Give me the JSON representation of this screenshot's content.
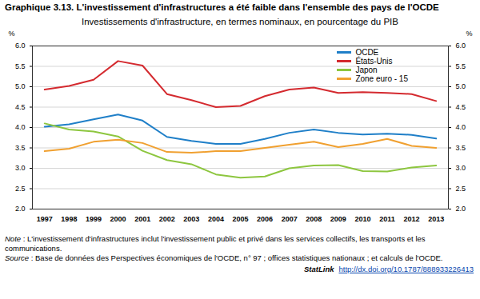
{
  "chart_data": {
    "type": "line",
    "title": "Graphique 3.13. L'investissement d'infrastructures a été faible dans l'ensemble des pays de l'OCDE",
    "subtitle": "Investissements d'infrastructure, en termes nominaux, en pourcentage du PIB",
    "ylabel": "%",
    "y2label": "%",
    "x": [
      1997,
      1998,
      1999,
      2000,
      2001,
      2002,
      2003,
      2004,
      2005,
      2006,
      2007,
      2008,
      2009,
      2010,
      2011,
      2012,
      2013
    ],
    "xlim": [
      1996.5,
      2013.5
    ],
    "xticks": [
      1997,
      1998,
      1999,
      2000,
      2001,
      2002,
      2003,
      2004,
      2005,
      2006,
      2007,
      2008,
      2009,
      2010,
      2011,
      2012,
      2013
    ],
    "ylim": [
      2.0,
      6.0
    ],
    "yticks": [
      {
        "value": 2,
        "label": "2.0"
      },
      {
        "value": 2.5,
        "label": "2.5"
      },
      {
        "value": 3,
        "label": "3.0"
      },
      {
        "value": 3.5,
        "label": "3.5"
      },
      {
        "value": 4,
        "label": "4.0"
      },
      {
        "value": 4.5,
        "label": "4.5"
      },
      {
        "value": 5,
        "label": "5.0"
      },
      {
        "value": 5.5,
        "label": "5.5"
      },
      {
        "value": 6,
        "label": "6.0"
      }
    ],
    "grid": true,
    "legend": "top-right",
    "series": [
      {
        "name": "OCDE",
        "color": "#1f7fc8",
        "values": [
          4.02,
          4.08,
          4.2,
          4.32,
          4.17,
          3.77,
          3.67,
          3.6,
          3.6,
          3.72,
          3.87,
          3.95,
          3.87,
          3.83,
          3.85,
          3.82,
          3.73
        ]
      },
      {
        "name": "États-Unis",
        "color": "#d42a2f",
        "values": [
          4.93,
          5.02,
          5.17,
          5.63,
          5.52,
          4.82,
          4.67,
          4.5,
          4.53,
          4.77,
          4.93,
          4.98,
          4.85,
          4.87,
          4.85,
          4.82,
          4.65
        ]
      },
      {
        "name": "Japon",
        "color": "#8dc63f",
        "values": [
          4.1,
          3.95,
          3.9,
          3.78,
          3.43,
          3.2,
          3.1,
          2.85,
          2.77,
          2.8,
          3.0,
          3.07,
          3.08,
          2.93,
          2.92,
          3.02,
          3.07
        ]
      },
      {
        "name": "Zone euro - 15",
        "color": "#f0a030",
        "values": [
          3.42,
          3.48,
          3.65,
          3.7,
          3.62,
          3.4,
          3.38,
          3.42,
          3.42,
          3.5,
          3.58,
          3.65,
          3.52,
          3.6,
          3.72,
          3.55,
          3.5
        ]
      }
    ],
    "note": "Note : L'investissement d'infrastructures inclut l'investissement public et privé dans les services collectifs, les transports et les communications.",
    "source": "Source : Base de données des Perspectives économiques de l'OCDE, n° 97 ; offices statistiques nationaux ; et calculs de l'OCDE.",
    "statlink": {
      "label": "StatLink",
      "url": "http://dx.doi.org/10.1787/888933226413"
    }
  }
}
